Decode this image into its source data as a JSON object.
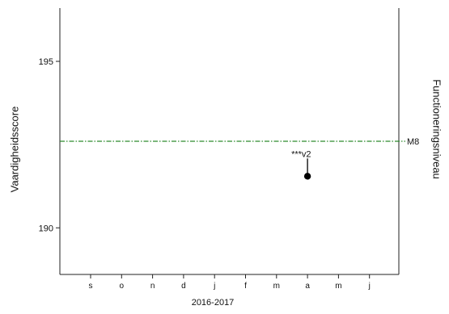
{
  "chart_data": {
    "type": "scatter",
    "ylabel_left": "Vaardigheidsscore",
    "ylabel_right": "Functioneringsniveau",
    "xlabel": "2016-2017",
    "x_categories": [
      "s",
      "o",
      "n",
      "d",
      "j",
      "f",
      "m",
      "a",
      "m",
      "j"
    ],
    "y_ticks": [
      195,
      190
    ],
    "ylim": [
      188.6,
      196.6
    ],
    "reference_lines": [
      {
        "label": "M8",
        "value": 192.6,
        "color": "#2e8b2e",
        "style": "dash-dot"
      }
    ],
    "points": [
      {
        "x": "a",
        "y": 191.55,
        "annotation": "***v2",
        "color": "#000000"
      }
    ],
    "grid": false
  }
}
